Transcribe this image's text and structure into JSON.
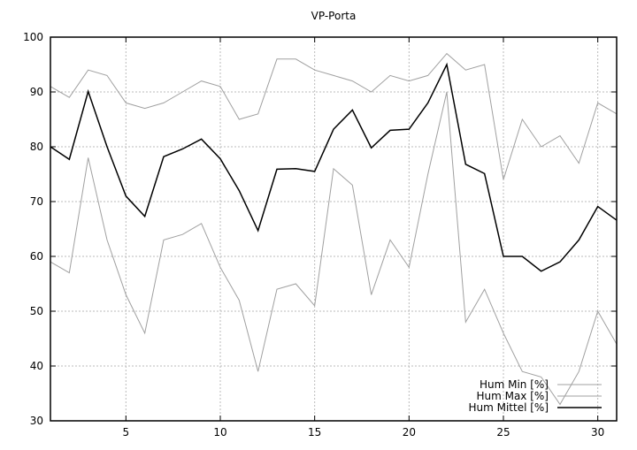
{
  "chart_data": {
    "type": "line",
    "title": "VP-Porta",
    "xlabel": "",
    "ylabel": "",
    "xlim": [
      1,
      31
    ],
    "ylim": [
      30,
      100
    ],
    "xticks": [
      5,
      10,
      15,
      20,
      25,
      30
    ],
    "yticks": [
      30,
      40,
      50,
      60,
      70,
      80,
      90,
      100
    ],
    "grid": true,
    "legend_position": "bottom-right",
    "x": [
      1,
      2,
      3,
      4,
      5,
      6,
      7,
      8,
      9,
      10,
      11,
      12,
      13,
      14,
      15,
      16,
      17,
      18,
      19,
      20,
      21,
      22,
      23,
      24,
      25,
      26,
      27,
      28,
      29,
      30,
      31
    ],
    "series": [
      {
        "name": "Hum Min [%]",
        "color": "#a0a0a0",
        "values": [
          59,
          57,
          78,
          63,
          53,
          46,
          63,
          64,
          66,
          58,
          52,
          39,
          54,
          55,
          51,
          76,
          73,
          53,
          63,
          58,
          75,
          90,
          48,
          54,
          46,
          39,
          38,
          33,
          39,
          50,
          44
        ]
      },
      {
        "name": "Hum Max [%]",
        "color": "#a0a0a0",
        "values": [
          91,
          89,
          94,
          93,
          88,
          87,
          88,
          90,
          92,
          91,
          85,
          86,
          96,
          96,
          94,
          93,
          92,
          90,
          93,
          92,
          93,
          97,
          94,
          95,
          74,
          85,
          80,
          82,
          77,
          88,
          86
        ]
      },
      {
        "name": "Hum Mittel [%]",
        "color": "#000000",
        "values": [
          80,
          77.7,
          90.1,
          80,
          71,
          67.3,
          78.2,
          79.6,
          81.4,
          77.8,
          72,
          64.7,
          75.9,
          76,
          75.5,
          83.2,
          86.7,
          79.8,
          83,
          83.2,
          88,
          95,
          76.8,
          75.1,
          60,
          60,
          57.3,
          59,
          63,
          69.1,
          66.6
        ]
      }
    ]
  }
}
